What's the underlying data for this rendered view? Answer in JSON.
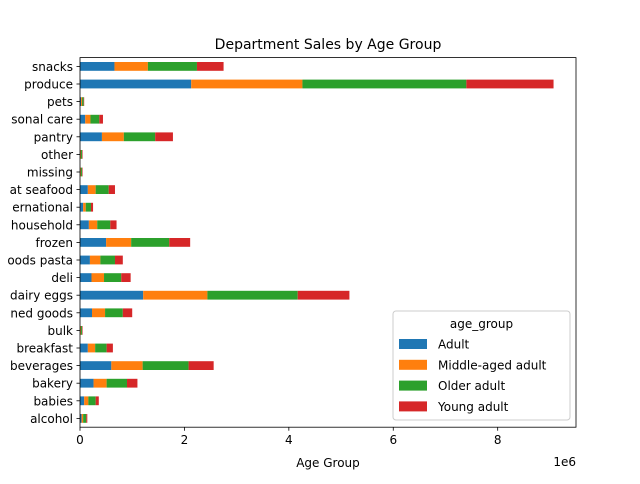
{
  "chart_data": {
    "type": "bar",
    "orientation": "horizontal",
    "stacked": true,
    "title": "Department Sales by Age Group",
    "xlabel": "Age Group",
    "ylabel": "",
    "x_offset_label": "1e6",
    "xlim": [
      0,
      9.5
    ],
    "x_ticks": [
      0,
      2,
      4,
      6,
      8
    ],
    "x_tick_labels": [
      "0",
      "2",
      "4",
      "6",
      "8"
    ],
    "grid": false,
    "legend_title": "age_group",
    "legend_position": "lower-right",
    "categories": [
      "alcohol",
      "babies",
      "bakery",
      "beverages",
      "breakfast",
      "bulk",
      "canned goods",
      "dairy eggs",
      "deli",
      "dry goods pasta",
      "frozen",
      "household",
      "international",
      "meat seafood",
      "missing",
      "other",
      "pantry",
      "personal care",
      "pets",
      "produce",
      "snacks"
    ],
    "category_tick_labels": [
      "alcohol",
      "babies",
      "bakery",
      "beverages",
      "breakfast",
      "bulk",
      "ned goods",
      "dairy eggs",
      "deli",
      "oods pasta",
      "frozen",
      "household",
      "ernational",
      "at seafood",
      "missing",
      "other",
      "pantry",
      "sonal care",
      "pets",
      "produce",
      "snacks"
    ],
    "value_scale": "millions",
    "series": [
      {
        "name": "Adult",
        "color": "#1f77b4",
        "values": [
          0.03,
          0.08,
          0.26,
          0.6,
          0.15,
          0.01,
          0.23,
          1.21,
          0.22,
          0.19,
          0.5,
          0.17,
          0.06,
          0.15,
          0.01,
          0.01,
          0.42,
          0.1,
          0.02,
          2.13,
          0.66
        ]
      },
      {
        "name": "Middle-aged adult",
        "color": "#ff7f0e",
        "values": [
          0.03,
          0.08,
          0.25,
          0.6,
          0.14,
          0.01,
          0.25,
          1.23,
          0.24,
          0.2,
          0.48,
          0.16,
          0.05,
          0.15,
          0.01,
          0.01,
          0.42,
          0.1,
          0.02,
          2.13,
          0.64
        ]
      },
      {
        "name": "Older adult",
        "color": "#2ca02c",
        "values": [
          0.06,
          0.14,
          0.39,
          0.88,
          0.22,
          0.02,
          0.34,
          1.73,
          0.33,
          0.28,
          0.73,
          0.25,
          0.1,
          0.25,
          0.02,
          0.02,
          0.6,
          0.17,
          0.03,
          3.14,
          0.94
        ]
      },
      {
        "name": "Young adult",
        "color": "#d62728",
        "values": [
          0.02,
          0.06,
          0.2,
          0.48,
          0.12,
          0.01,
          0.18,
          0.99,
          0.18,
          0.15,
          0.4,
          0.12,
          0.04,
          0.12,
          0.01,
          0.01,
          0.34,
          0.07,
          0.01,
          1.67,
          0.51
        ]
      }
    ]
  }
}
